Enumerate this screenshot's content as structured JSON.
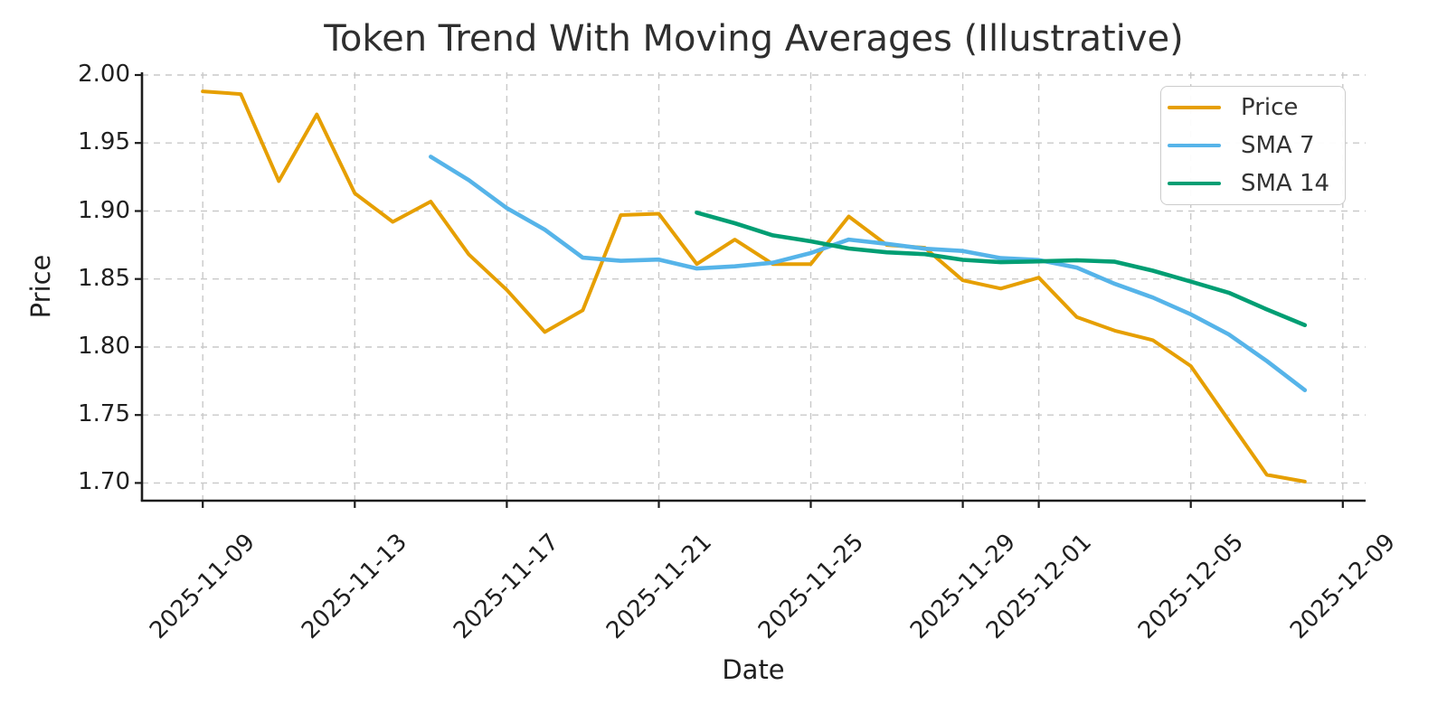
{
  "chart_data": {
    "type": "line",
    "title": "Token Trend With Moving Averages (Illustrative)",
    "xlabel": "Date",
    "ylabel": "Price",
    "grid": true,
    "grid_style": "dashed",
    "legend_position": "upper right",
    "background_color": "#ffffff",
    "grid_color": "#c9c9c9",
    "spine_color": "#1c1c1c",
    "xlim_days": [
      -1.6,
      30.6
    ],
    "ylim": [
      1.687,
      2.002
    ],
    "dates": [
      "2025-11-09",
      "2025-11-10",
      "2025-11-11",
      "2025-11-12",
      "2025-11-13",
      "2025-11-14",
      "2025-11-15",
      "2025-11-16",
      "2025-11-17",
      "2025-11-18",
      "2025-11-19",
      "2025-11-20",
      "2025-11-21",
      "2025-11-22",
      "2025-11-23",
      "2025-11-24",
      "2025-11-25",
      "2025-11-26",
      "2025-11-27",
      "2025-11-28",
      "2025-11-29",
      "2025-11-30",
      "2025-12-01",
      "2025-12-02",
      "2025-12-03",
      "2025-12-04",
      "2025-12-05",
      "2025-12-06",
      "2025-12-07",
      "2025-12-08"
    ],
    "series": [
      {
        "name": "Price",
        "color": "#E69F00",
        "line_width": 4.0,
        "start_index": 0,
        "values": [
          1.988,
          1.986,
          1.922,
          1.971,
          1.913,
          1.892,
          1.907,
          1.868,
          1.842,
          1.811,
          1.827,
          1.897,
          1.898,
          1.861,
          1.879,
          1.861,
          1.861,
          1.896,
          1.875,
          1.873,
          1.849,
          1.843,
          1.851,
          1.822,
          1.812,
          1.805,
          1.786,
          1.746,
          1.706,
          1.701
        ]
      },
      {
        "name": "SMA 7",
        "color": "#56B4E9",
        "line_width": 4.6,
        "start_index": 6,
        "values": [
          1.9399,
          1.9227,
          1.9021,
          1.8863,
          1.8657,
          1.8634,
          1.8643,
          1.8577,
          1.8593,
          1.862,
          1.8691,
          1.879,
          1.8759,
          1.8723,
          1.8706,
          1.8654,
          1.864,
          1.8584,
          1.8464,
          1.8364,
          1.824,
          1.8093,
          1.7897,
          1.7683
        ]
      },
      {
        "name": "SMA 14",
        "color": "#009E73",
        "line_width": 4.6,
        "start_index": 13,
        "values": [
          1.8988,
          1.891,
          1.8821,
          1.8777,
          1.8724,
          1.8696,
          1.8683,
          1.8641,
          1.8624,
          1.863,
          1.8638,
          1.8627,
          1.8561,
          1.8481,
          1.8399,
          1.8276,
          1.8161
        ]
      }
    ],
    "x_ticks": [
      {
        "day": 0,
        "label": "2025-11-09"
      },
      {
        "day": 4,
        "label": "2025-11-13"
      },
      {
        "day": 8,
        "label": "2025-11-17"
      },
      {
        "day": 12,
        "label": "2025-11-21"
      },
      {
        "day": 16,
        "label": "2025-11-25"
      },
      {
        "day": 20,
        "label": "2025-11-29"
      },
      {
        "day": 22,
        "label": "2025-12-01"
      },
      {
        "day": 26,
        "label": "2025-12-05"
      },
      {
        "day": 30,
        "label": "2025-12-09"
      }
    ],
    "y_ticks": [
      {
        "v": 1.7,
        "label": "1.70"
      },
      {
        "v": 1.75,
        "label": "1.75"
      },
      {
        "v": 1.8,
        "label": "1.80"
      },
      {
        "v": 1.85,
        "label": "1.85"
      },
      {
        "v": 1.9,
        "label": "1.90"
      },
      {
        "v": 1.95,
        "label": "1.95"
      },
      {
        "v": 2.0,
        "label": "2.00"
      }
    ]
  }
}
